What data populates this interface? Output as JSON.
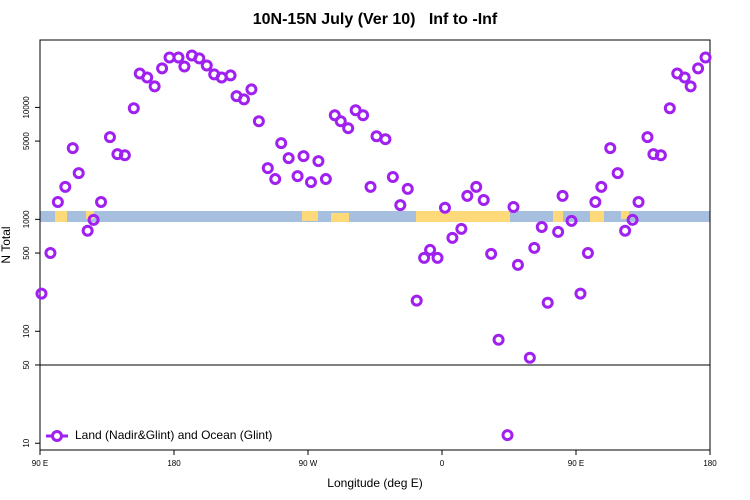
{
  "chart_data": {
    "type": "scatter",
    "title": "10N-15N July (Ver 10)   Inf to -Inf",
    "x_label": "Longitude (deg E)",
    "y_label": "N Total",
    "log_y": true,
    "xlim": [
      90,
      540
    ],
    "ylim": [
      8.7,
      40000
    ],
    "xticks": [
      {
        "value": 90,
        "label": "90 E"
      },
      180,
      {
        "value": 270,
        "label": "90 W"
      },
      {
        "value": 360,
        "label": "0"
      },
      {
        "value": 450,
        "label": "90 E"
      },
      {
        "value": 540,
        "label": "180"
      }
    ],
    "yticks": [
      10,
      50,
      100,
      500,
      1000,
      5000,
      10000
    ],
    "hline": 50,
    "legend": "bottom-left",
    "series": [
      {
        "name": "Land (Nadir&Glint) and Ocean (Glint)",
        "color": "#a020f0",
        "x": [
          91,
          97,
          102,
          107,
          112,
          116,
          122,
          126,
          131,
          137,
          142,
          147,
          153,
          157,
          162,
          167,
          172,
          177,
          183,
          187,
          192,
          197,
          202,
          207,
          212,
          218,
          222,
          227,
          232,
          237,
          243,
          248,
          252,
          257,
          263,
          267,
          272,
          277,
          282,
          288,
          292,
          297,
          302,
          307,
          312,
          316,
          322,
          327,
          332,
          337,
          343,
          348,
          352,
          357,
          362,
          367,
          373,
          377,
          383,
          388,
          393,
          398,
          404,
          408,
          411,
          419,
          422,
          427,
          431,
          438,
          441,
          447,
          453,
          458,
          463,
          467,
          473,
          478,
          483,
          488,
          492,
          498,
          502,
          507,
          513,
          518,
          523,
          527,
          532,
          537
        ],
        "values": [
          217,
          500,
          1430,
          1950,
          4330,
          2590,
          790,
          990,
          1430,
          5420,
          3820,
          3740,
          9820,
          20100,
          18500,
          15400,
          22300,
          27900,
          27900,
          23200,
          29100,
          27400,
          23700,
          19700,
          18500,
          19300,
          12600,
          11800,
          14500,
          7520,
          2870,
          2290,
          4790,
          3520,
          2430,
          3670,
          2150,
          3310,
          2290,
          8510,
          7520,
          6520,
          9420,
          8510,
          1950,
          5530,
          5200,
          2390,
          1340,
          1870,
          188,
          453,
          533,
          453,
          1270,
          683,
          822,
          1620,
          1950,
          1490,
          492,
          84,
          11.8,
          1290,
          392,
          58,
          556,
          855,
          180,
          773,
          1620,
          968,
          217,
          500,
          1430,
          1950,
          4330,
          2590,
          790,
          990,
          1430,
          5420,
          3820,
          3740,
          9820,
          20100,
          18500,
          15400,
          22300,
          27900
        ]
      }
    ]
  }
}
